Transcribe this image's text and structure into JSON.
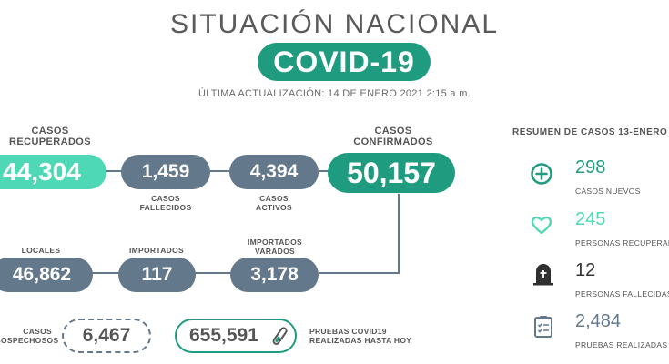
{
  "header": {
    "title": "SITUACIÓN NACIONAL",
    "badge": "COVID-19",
    "updated": "ÚLTIMA ACTUALIZACIÓN: 14 DE ENERO 2021 2:15 a.m."
  },
  "colors": {
    "green": "#1f9c7f",
    "mint": "#4ed8b5",
    "slate": "#64788b"
  },
  "stats": {
    "recuperados": {
      "label_1": "CASOS",
      "label_2": "RECUPERADOS",
      "value": "44,304"
    },
    "fallecidos": {
      "value": "1,459",
      "label_1": "CASOS",
      "label_2": "FALLECIDOS"
    },
    "activos": {
      "value": "4,394",
      "label_1": "CASOS",
      "label_2": "ACTIVOS"
    },
    "confirmados": {
      "label_1": "CASOS",
      "label_2": "CONFIRMADOS",
      "value": "50,157"
    },
    "locales": {
      "label": "LOCALES",
      "value": "46,862"
    },
    "importados": {
      "label": "IMPORTADOS",
      "value": "117"
    },
    "importados_varados": {
      "label_1": "IMPORTADOS",
      "label_2": "VARADOS",
      "value": "3,178"
    },
    "sospechosos": {
      "label_1": "CASOS",
      "label_2": "SOSPECHOSOS",
      "value": "6,467"
    },
    "pruebas": {
      "value": "655,591",
      "label_1": "PRUEBAS COVID19",
      "label_2": "REALIZADAS HASTA HOY"
    }
  },
  "summary": {
    "heading": "RESUMEN DE CASOS 13-ENERO",
    "items": [
      {
        "icon": "plus-circle-icon",
        "value": "298",
        "label": "CASOS NUEVOS",
        "color": "#1f9c7f"
      },
      {
        "icon": "heart-icon",
        "value": "245",
        "label": "PERSONAS RECUPERADAS",
        "color": "#4ed8b5"
      },
      {
        "icon": "tombstone-icon",
        "value": "12",
        "label": "PERSONAS FALLECIDAS",
        "color": "#333333"
      },
      {
        "icon": "clipboard-icon",
        "value": "2,484",
        "label": "PRUEBAS REALIZADAS",
        "color": "#64788b"
      }
    ]
  }
}
